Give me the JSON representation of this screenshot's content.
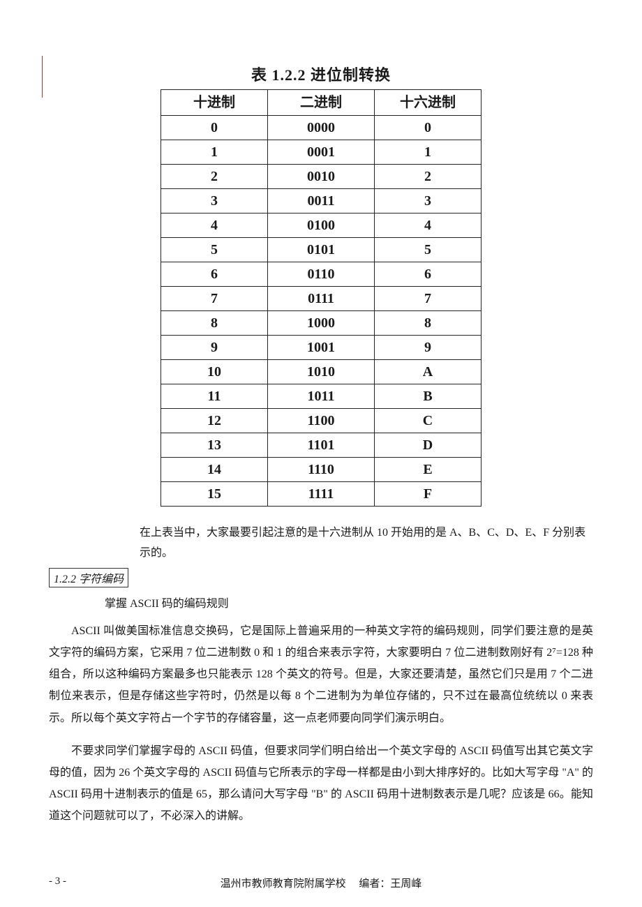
{
  "table": {
    "caption": "表 1.2.2  进位制转换",
    "columns": [
      "十进制",
      "二进制",
      "十六进制"
    ],
    "rows": [
      [
        "0",
        "0000",
        "0"
      ],
      [
        "1",
        "0001",
        "1"
      ],
      [
        "2",
        "0010",
        "2"
      ],
      [
        "3",
        "0011",
        "3"
      ],
      [
        "4",
        "0100",
        "4"
      ],
      [
        "5",
        "0101",
        "5"
      ],
      [
        "6",
        "0110",
        "6"
      ],
      [
        "7",
        "0111",
        "7"
      ],
      [
        "8",
        "1000",
        "8"
      ],
      [
        "9",
        "1001",
        "9"
      ],
      [
        "10",
        "1010",
        "A"
      ],
      [
        "11",
        "1011",
        "B"
      ],
      [
        "12",
        "1100",
        "C"
      ],
      [
        "13",
        "1101",
        "D"
      ],
      [
        "14",
        "1110",
        "E"
      ],
      [
        "15",
        "1111",
        "F"
      ]
    ],
    "border_color": "#222222",
    "header_fontsize": 20,
    "cell_fontsize": 20,
    "col_widths_pct": [
      33,
      34,
      33
    ]
  },
  "note_text": "在上表当中，大家最要引起注意的是十六进制从 10 开始用的是 A、B、C、D、E、F 分别表示的。",
  "section": {
    "number": "1.2.2",
    "title": "字符编码",
    "sub": "掌握 ASCII 码的编码规则"
  },
  "para1": "ASCII 叫做美国标准信息交换码，它是国际上普遍采用的一种英文字符的编码规则，同学们要注意的是英文字符的编码方案，它采用 7 位二进制数 0 和 1 的组合来表示字符，大家要明白 7 位二进制数刚好有 2⁷=128 种组合，所以这种编码方案最多也只能表示 128 个英文的符号。但是，大家还要清楚，虽然它们只是用 7 个二进制位来表示，但是存储这些字符时，仍然是以每 8 个二进制为为单位存储的，只不过在最高位统统以 0 来表示。所以每个英文字符占一个字节的存储容量，这一点老师要向同学们演示明白。",
  "para2": "不要求同学们掌握字母的 ASCII 码值，但要求同学们明白给出一个英文字母的 ASCII 码值写出其它英文字母的值，因为 26 个英文字母的 ASCII 码值与它所表示的字母一样都是由小到大排序好的。比如大写字母 \"A\" 的 ASCII 码用十进制表示的值是 65，那么请问大写字母 \"B\" 的 ASCII 码用十进制数表示是几呢？应该是 66。能知道这个问题就可以了，不必深入的讲解。",
  "footer": {
    "page": "- 3 -",
    "institution": "温州市教师教育院附属学校",
    "author_label": "编者：",
    "author": "王周峰"
  },
  "colors": {
    "text": "#1a1a1a",
    "rule_red": "#b83030",
    "background": "#ffffff"
  },
  "typography": {
    "body_fontsize": 16,
    "body_lineheight": 1.95,
    "caption_fontsize": 22
  }
}
